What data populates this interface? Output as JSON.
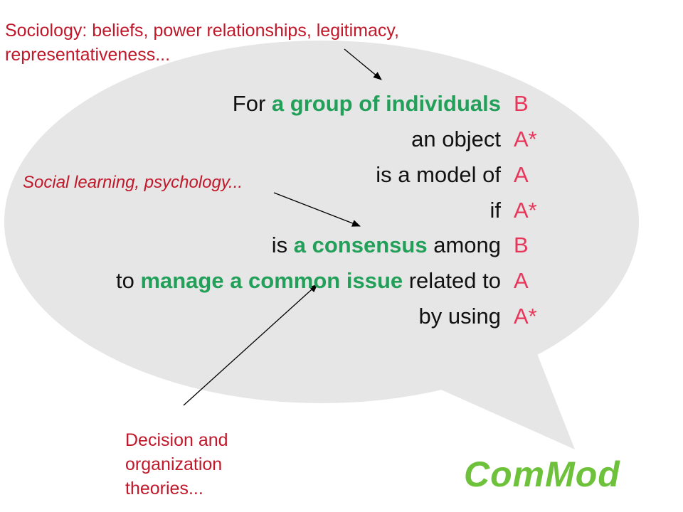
{
  "sentence": {
    "line1": {
      "pre": "For ",
      "hl": "a group of individuals",
      "code": "B"
    },
    "line2": {
      "text": "an object",
      "code": "A*"
    },
    "line3": {
      "text": "is a model of",
      "code": "A"
    },
    "line4": {
      "text": "if",
      "code": "A*"
    },
    "line5": {
      "pre": "is ",
      "hl": "a consensus",
      "post": " among",
      "code": "B"
    },
    "line6": {
      "pre": "to ",
      "hl": "manage a common issue",
      "post": " related to",
      "code": "A"
    },
    "line7": {
      "text": "by using",
      "code": "A*"
    }
  },
  "annotations": {
    "sociology": [
      "Sociology: beliefs, power relationships, legitimacy,",
      "representativeness..."
    ],
    "social": "Social learning, psychology...",
    "decision": [
      "Decision and",
      "organization",
      "theories..."
    ]
  },
  "brand": "ComMod",
  "colors": {
    "bubble": "#e6e6e6",
    "text": "#111111",
    "highlight": "#22a05a",
    "code": "#e8365a",
    "annotation": "#c0182a",
    "brand": "#6ec13a"
  }
}
